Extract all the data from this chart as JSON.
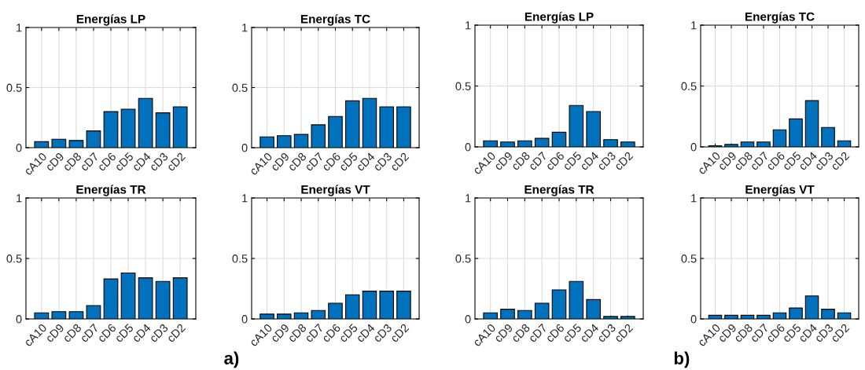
{
  "chart_data": [
    {
      "type": "bar",
      "title": "Energías LP",
      "categories": [
        "cA10",
        "cD9",
        "cD8",
        "cD7",
        "cD6",
        "cD5",
        "cD4",
        "cD3",
        "cD2"
      ],
      "values": [
        0.05,
        0.07,
        0.06,
        0.14,
        0.3,
        0.32,
        0.41,
        0.29,
        0.34
      ],
      "color": "#0072bd",
      "ylim": [
        0,
        1
      ],
      "yticks": [
        0,
        0.5,
        1
      ],
      "grid": true
    },
    {
      "type": "bar",
      "title": "Energías TC",
      "categories": [
        "cA10",
        "cD9",
        "cD8",
        "cD7",
        "cD6",
        "cD5",
        "cD4",
        "cD3",
        "cD2"
      ],
      "values": [
        0.09,
        0.1,
        0.11,
        0.19,
        0.26,
        0.39,
        0.41,
        0.34,
        0.34
      ],
      "color": "#0072bd",
      "ylim": [
        0,
        1
      ],
      "yticks": [
        0,
        0.5,
        1
      ],
      "grid": true
    },
    {
      "type": "bar",
      "title": "Energías TR",
      "categories": [
        "cA10",
        "cD9",
        "cD8",
        "cD7",
        "cD6",
        "cD5",
        "cD4",
        "cD3",
        "cD2"
      ],
      "values": [
        0.05,
        0.06,
        0.06,
        0.11,
        0.33,
        0.38,
        0.34,
        0.31,
        0.34
      ],
      "color": "#0072bd",
      "ylim": [
        0,
        1
      ],
      "yticks": [
        0,
        0.5,
        1
      ],
      "grid": true
    },
    {
      "type": "bar",
      "title": "Energías VT",
      "categories": [
        "cA10",
        "cD9",
        "cD8",
        "cD7",
        "cD6",
        "cD5",
        "cD4",
        "cD3",
        "cD2"
      ],
      "values": [
        0.04,
        0.04,
        0.05,
        0.07,
        0.13,
        0.2,
        0.23,
        0.23,
        0.23
      ],
      "color": "#0072bd",
      "ylim": [
        0,
        1
      ],
      "yticks": [
        0,
        0.5,
        1
      ],
      "grid": true,
      "annotations": [
        "a)"
      ]
    },
    {
      "type": "bar",
      "title": "Energías LP",
      "categories": [
        "cA10",
        "cD9",
        "cD8",
        "cD7",
        "cD6",
        "cD5",
        "cD4",
        "cD3",
        "cD2"
      ],
      "values": [
        0.05,
        0.04,
        0.05,
        0.07,
        0.12,
        0.34,
        0.29,
        0.06,
        0.04
      ],
      "color": "#0072bd",
      "ylim": [
        0,
        1
      ],
      "yticks": [
        0,
        0.5,
        1
      ],
      "grid": true
    },
    {
      "type": "bar",
      "title": "Energías TC",
      "categories": [
        "cA10",
        "cD9",
        "cD8",
        "cD7",
        "cD6",
        "cD5",
        "cD4",
        "cD3",
        "cD2"
      ],
      "values": [
        0.01,
        0.02,
        0.04,
        0.04,
        0.14,
        0.23,
        0.38,
        0.16,
        0.05
      ],
      "color": "#0072bd",
      "ylim": [
        0,
        1
      ],
      "yticks": [
        0,
        0.5,
        1
      ],
      "grid": true
    },
    {
      "type": "bar",
      "title": "Energías TR",
      "categories": [
        "cA10",
        "cD9",
        "cD8",
        "cD7",
        "cD6",
        "cD5",
        "cD4",
        "cD3",
        "cD2"
      ],
      "values": [
        0.05,
        0.08,
        0.07,
        0.13,
        0.24,
        0.31,
        0.16,
        0.02,
        0.02
      ],
      "color": "#0072bd",
      "ylim": [
        0,
        1
      ],
      "yticks": [
        0,
        0.5,
        1
      ],
      "grid": true
    },
    {
      "type": "bar",
      "title": "Energías VT",
      "categories": [
        "cA10",
        "cD9",
        "cD8",
        "cD7",
        "cD6",
        "cD5",
        "cD4",
        "cD3",
        "cD2"
      ],
      "values": [
        0.03,
        0.03,
        0.03,
        0.03,
        0.05,
        0.09,
        0.19,
        0.08,
        0.05
      ],
      "color": "#0072bd",
      "ylim": [
        0,
        1
      ],
      "yticks": [
        0,
        0.5,
        1
      ],
      "grid": true,
      "annotations": [
        "b)"
      ]
    }
  ]
}
